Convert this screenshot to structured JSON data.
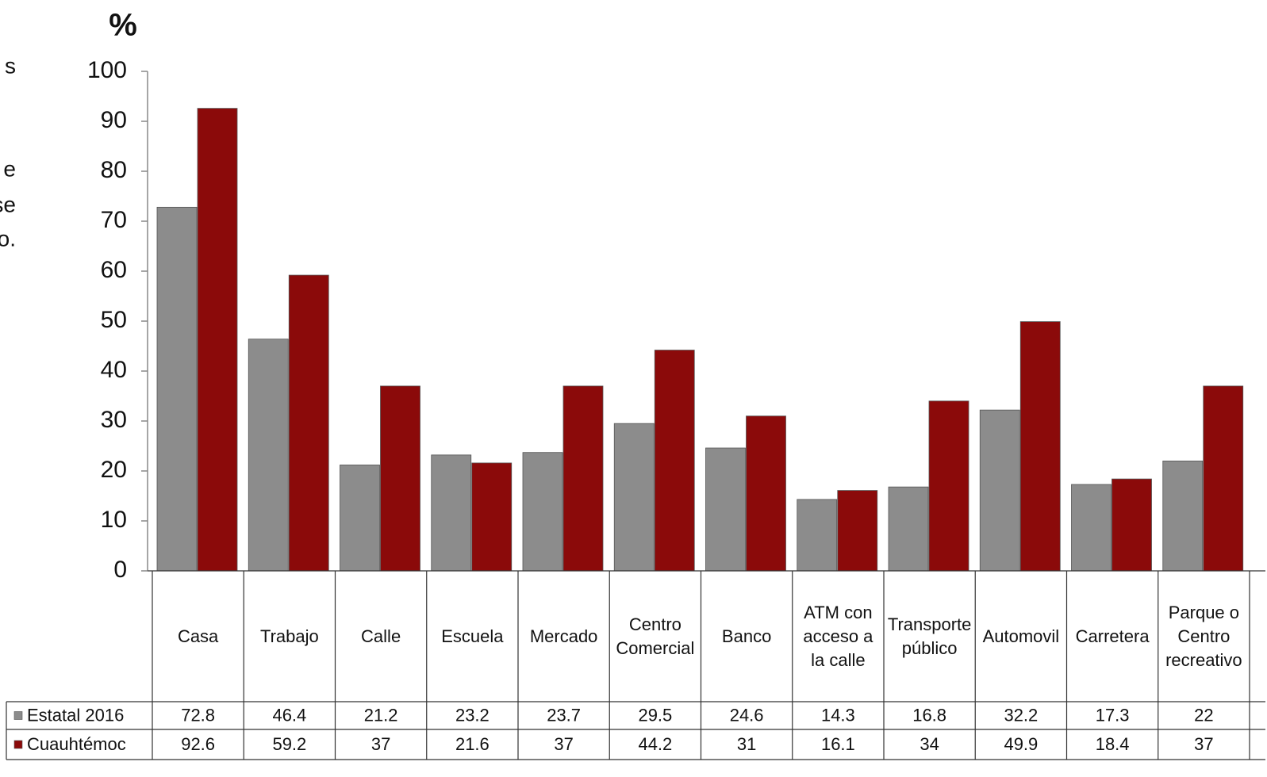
{
  "chart_data": {
    "type": "bar",
    "y_label": "%",
    "annotations": [
      "s",
      "e",
      ": se",
      "o."
    ],
    "categories": [
      "Casa",
      "Trabajo",
      "Calle",
      "Escuela",
      "Mercado",
      "Centro Comercial",
      "Banco",
      "ATM con acceso a la calle",
      "Transporte público",
      "Automovil",
      "Carretera",
      "Parque o Centro recreativo"
    ],
    "series": [
      {
        "name": "Estatal 2016",
        "color": "#8c8c8c",
        "values": [
          72.8,
          46.4,
          21.2,
          23.2,
          23.7,
          29.5,
          24.6,
          14.3,
          16.8,
          32.2,
          17.3,
          22
        ]
      },
      {
        "name": "Cuauhtémoc",
        "color": "#8b0a0a",
        "values": [
          92.6,
          59.2,
          37,
          21.6,
          37,
          44.2,
          31,
          16.1,
          34,
          49.9,
          18.4,
          37
        ]
      }
    ],
    "ylim": [
      0,
      100
    ],
    "yticks": [
      0,
      10,
      20,
      30,
      40,
      50,
      60,
      70,
      80,
      90,
      100
    ],
    "grid": false
  }
}
